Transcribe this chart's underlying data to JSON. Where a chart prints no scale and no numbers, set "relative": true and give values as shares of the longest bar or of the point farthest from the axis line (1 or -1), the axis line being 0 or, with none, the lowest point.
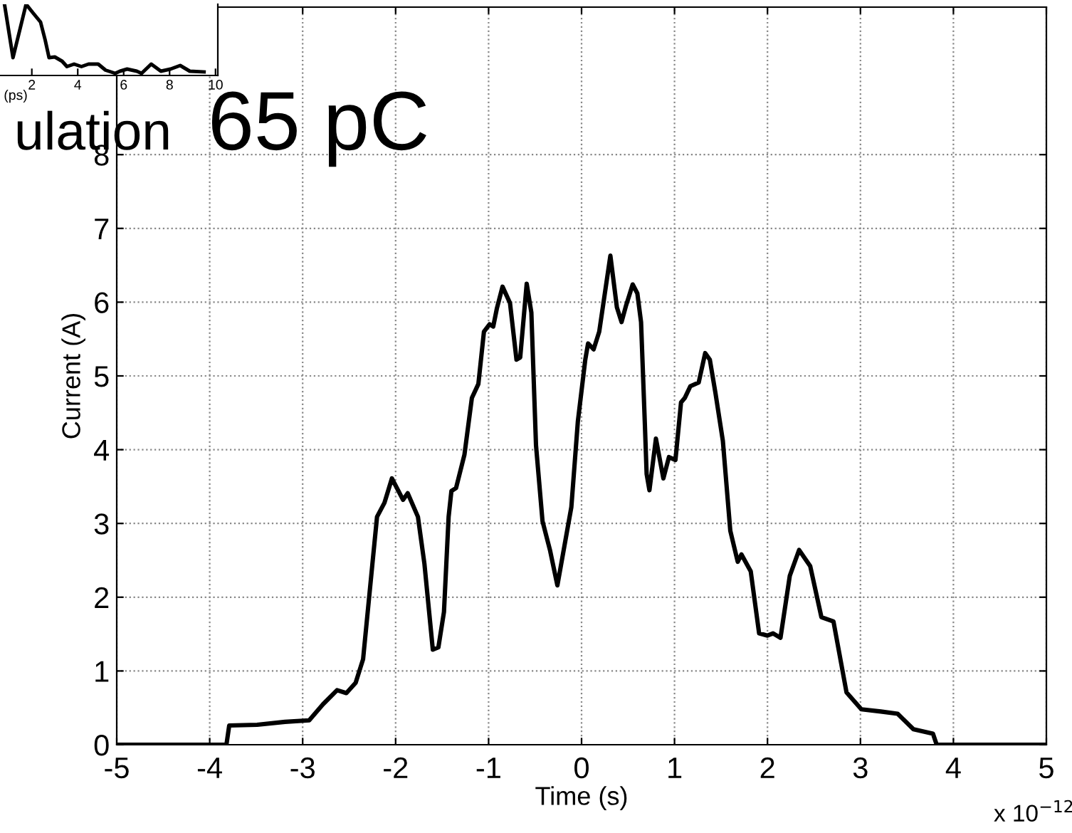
{
  "chart_data": [
    {
      "type": "line",
      "xlabel": "Time (s)",
      "ylabel": "Current (A)",
      "annotations": [
        "ulation",
        "65 pC",
        "x 10$^{−12}$"
      ],
      "x": [
        -5,
        -3.82,
        -3.79,
        -3.49,
        -3.19,
        -2.93,
        -2.78,
        -2.63,
        -2.53,
        -2.43,
        -2.35,
        -2.25,
        -2.2,
        -2.12,
        -2.04,
        -1.92,
        -1.87,
        -1.76,
        -1.69,
        -1.6,
        -1.54,
        -1.48,
        -1.43,
        -1.4,
        -1.35,
        -1.26,
        -1.18,
        -1.11,
        -1.05,
        -0.99,
        -0.95,
        -0.91,
        -0.85,
        -0.77,
        -0.7,
        -0.66,
        -0.59,
        -0.54,
        -0.49,
        -0.42,
        -0.34,
        -0.26,
        -0.11,
        -0.04,
        0.04,
        0.07,
        0.13,
        0.19,
        0.31,
        0.38,
        0.43,
        0.48,
        0.55,
        0.6,
        0.64,
        0.68,
        0.7,
        0.73,
        0.8,
        0.88,
        0.94,
        1.01,
        1.07,
        1.11,
        1.17,
        1.26,
        1.33,
        1.38,
        1.44,
        1.52,
        1.6,
        1.68,
        1.72,
        1.82,
        1.91,
        2.0,
        2.06,
        2.14,
        2.24,
        2.34,
        2.46,
        2.58,
        2.71,
        2.85,
        3.01,
        3.22,
        3.4,
        3.57,
        3.78,
        3.82,
        5
      ],
      "series": [
        {
          "color": "#000000",
          "values": [
            0,
            0,
            0.26,
            0.27,
            0.31,
            0.33,
            0.55,
            0.74,
            0.7,
            0.84,
            1.16,
            2.45,
            3.09,
            3.28,
            3.61,
            3.32,
            3.41,
            3.09,
            2.45,
            1.29,
            1.32,
            1.8,
            3.09,
            3.44,
            3.48,
            3.93,
            4.7,
            4.89,
            5.6,
            5.7,
            5.67,
            5.92,
            6.21,
            5.99,
            5.22,
            5.25,
            6.25,
            5.86,
            4.06,
            3.03,
            2.64,
            2.16,
            3.22,
            4.38,
            5.22,
            5.44,
            5.36,
            5.6,
            6.63,
            5.93,
            5.73,
            5.96,
            6.24,
            6.12,
            5.73,
            4.38,
            3.67,
            3.45,
            4.15,
            3.61,
            3.9,
            3.86,
            4.64,
            4.7,
            4.86,
            4.91,
            5.31,
            5.22,
            4.77,
            4.12,
            2.9,
            2.48,
            2.58,
            2.35,
            1.51,
            1.48,
            1.51,
            1.45,
            2.29,
            2.64,
            2.42,
            1.73,
            1.67,
            0.71,
            0.48,
            0.45,
            0.42,
            0.21,
            0.15,
            0,
            0
          ]
        }
      ],
      "xlim": [
        -5,
        5
      ],
      "xticks": [
        -5,
        -4,
        -3,
        -2,
        -1,
        0,
        1,
        2,
        3,
        4,
        5
      ],
      "ylim": [
        0,
        10
      ],
      "yticks": [
        0,
        1,
        2,
        3,
        4,
        5,
        6,
        7,
        8
      ],
      "grid": true
    },
    {
      "type": "line",
      "xlabel": "(ps)",
      "relative": true,
      "tick_labels": "x",
      "x": [
        0.81,
        1.18,
        1.75,
        2.06,
        2.38,
        2.58,
        2.75,
        3.0,
        3.32,
        3.53,
        3.84,
        4.16,
        4.47,
        4.89,
        5.21,
        5.63,
        5.84,
        6.15,
        6.57,
        6.78,
        7.2,
        7.62,
        8.04,
        8.46,
        8.88,
        9.5
      ],
      "series": [
        {
          "color": "#000000",
          "values": [
            1.0,
            0.25,
            1.0,
            0.875,
            0.75,
            0.5,
            0.25,
            0.26,
            0.2,
            0.125,
            0.16,
            0.125,
            0.16,
            0.16,
            0.075,
            0.03,
            0.06,
            0.09,
            0.06,
            0.03,
            0.16,
            0.06,
            0.09,
            0.14,
            0.06,
            0.05
          ]
        }
      ],
      "xlim": [
        0.49,
        10.1
      ],
      "xticks": [
        2,
        4,
        6,
        8,
        10
      ]
    }
  ]
}
